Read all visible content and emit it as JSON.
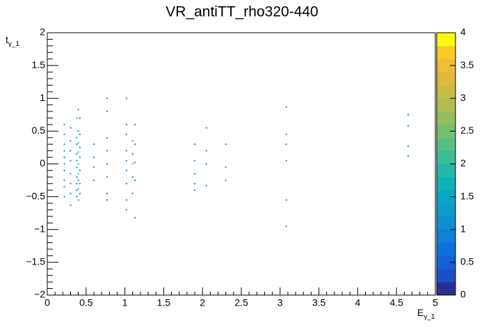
{
  "chart_data": {
    "type": "heatmap-scatter",
    "title": "VR_antiTT_rho320-440",
    "x_label": {
      "main": "E",
      "sub": "γ_1"
    },
    "y_label": {
      "main": "t",
      "sub": "γ_1"
    },
    "xlim": [
      0,
      5
    ],
    "ylim": [
      -2,
      2
    ],
    "zlim": [
      0,
      4
    ],
    "xticks": [
      0,
      0.5,
      1,
      1.5,
      2,
      2.5,
      3,
      3.5,
      4,
      4.5,
      5
    ],
    "yticks": [
      {
        "value": -2,
        "label": "−2"
      },
      {
        "value": -1.5,
        "label": "−1.5"
      },
      {
        "value": -1,
        "label": "−1"
      },
      {
        "value": -0.5,
        "label": "−0.5"
      },
      0,
      0.5,
      1,
      1.5,
      2
    ],
    "zticks": [
      0,
      0.5,
      1,
      1.5,
      2,
      2.5,
      3,
      3.5,
      4
    ],
    "palette": [
      "#2a2f8f",
      "#1f4fc6",
      "#1460d9",
      "#0f70dd",
      "#0d80d8",
      "#0f8fd2",
      "#0c9dcb",
      "#08a7c3",
      "#11b0b5",
      "#24b6a6",
      "#3abc96",
      "#57bf84",
      "#75c06f",
      "#93bf5d",
      "#afbd4f",
      "#c8bb44",
      "#dfb93c",
      "#f0bd35",
      "#f8cc28",
      "#f9fb0e"
    ],
    "x": [
      0.22,
      0.22,
      0.22,
      0.22,
      0.22,
      0.22,
      0.22,
      0.22,
      0.22,
      0.22,
      0.3,
      0.3,
      0.3,
      0.3,
      0.3,
      0.3,
      0.3,
      0.3,
      0.38,
      0.38,
      0.38,
      0.38,
      0.38,
      0.38,
      0.38,
      0.38,
      0.38,
      0.38,
      0.4,
      0.4,
      0.4,
      0.4,
      0.4,
      0.4,
      0.4,
      0.4,
      0.4,
      0.42,
      0.42,
      0.42,
      0.42,
      0.42,
      0.42,
      0.42,
      0.6,
      0.6,
      0.6,
      0.6,
      0.77,
      0.77,
      0.77,
      0.77,
      0.77,
      0.77,
      0.77,
      0.77,
      1.02,
      1.02,
      1.02,
      1.02,
      1.02,
      1.02,
      1.02,
      1.02,
      1.02,
      1.1,
      1.1,
      1.1,
      1.1,
      1.1,
      1.13,
      1.13,
      1.13,
      1.13,
      1.13,
      1.9,
      1.9,
      1.9,
      1.9,
      1.9,
      2.05,
      2.05,
      2.05,
      2.05,
      2.3,
      2.3,
      2.3,
      3.08,
      3.08,
      3.08,
      3.08,
      3.08,
      3.08,
      4.65,
      4.65,
      4.65,
      4.65
    ],
    "y": [
      0.6,
      0.45,
      0.3,
      0.2,
      0.1,
      0,
      -0.1,
      -0.25,
      -0.35,
      -0.5,
      0.55,
      0.35,
      0.2,
      0.05,
      -0.15,
      -0.3,
      -0.45,
      -0.63,
      0.7,
      0.4,
      0.3,
      0.15,
      0.05,
      -0.05,
      -0.2,
      -0.3,
      -0.4,
      -0.5,
      0.83,
      0.5,
      0.32,
      0.18,
      0,
      -0.15,
      -0.25,
      -0.38,
      -0.55,
      0.7,
      0.45,
      0.25,
      0.1,
      -0.1,
      -0.3,
      -0.45,
      0.3,
      0.1,
      -0.05,
      -0.25,
      1,
      0.8,
      0.4,
      0.2,
      0,
      -0.2,
      -0.45,
      -0.55,
      1,
      0.6,
      0.45,
      0.2,
      0.05,
      -0.1,
      -0.3,
      -0.55,
      -0.7,
      0.35,
      0.15,
      0,
      -0.2,
      -0.45,
      0.6,
      0.3,
      0.02,
      -0.25,
      -0.82,
      0.3,
      0.05,
      -0.15,
      -0.3,
      -0.4,
      0.55,
      0.2,
      0,
      -0.33,
      0.3,
      -0.05,
      -0.25,
      0.87,
      0.45,
      0.3,
      0.05,
      -0.55,
      -0.95,
      0.75,
      0.58,
      0.27,
      0.12
    ],
    "z": [
      1,
      1,
      1,
      1,
      1,
      1,
      1,
      1,
      1,
      1,
      1,
      1,
      1,
      1,
      1,
      1,
      1,
      1,
      1,
      1,
      1,
      1,
      1,
      1,
      1,
      1,
      1,
      1,
      1,
      1,
      2,
      2,
      1,
      2,
      1,
      2,
      1,
      1,
      1,
      1,
      1,
      1,
      1,
      1,
      1,
      1,
      1,
      1,
      1,
      1,
      1,
      1,
      1,
      1,
      1,
      1,
      1,
      1,
      1,
      1,
      1,
      1,
      1,
      1,
      1,
      1,
      1,
      2,
      1,
      1,
      1,
      1,
      1,
      1,
      1,
      1,
      1,
      1,
      1,
      1,
      1,
      1,
      1,
      1,
      1,
      1,
      1,
      1,
      1,
      1,
      1,
      1,
      1,
      1,
      1,
      1,
      1
    ]
  }
}
